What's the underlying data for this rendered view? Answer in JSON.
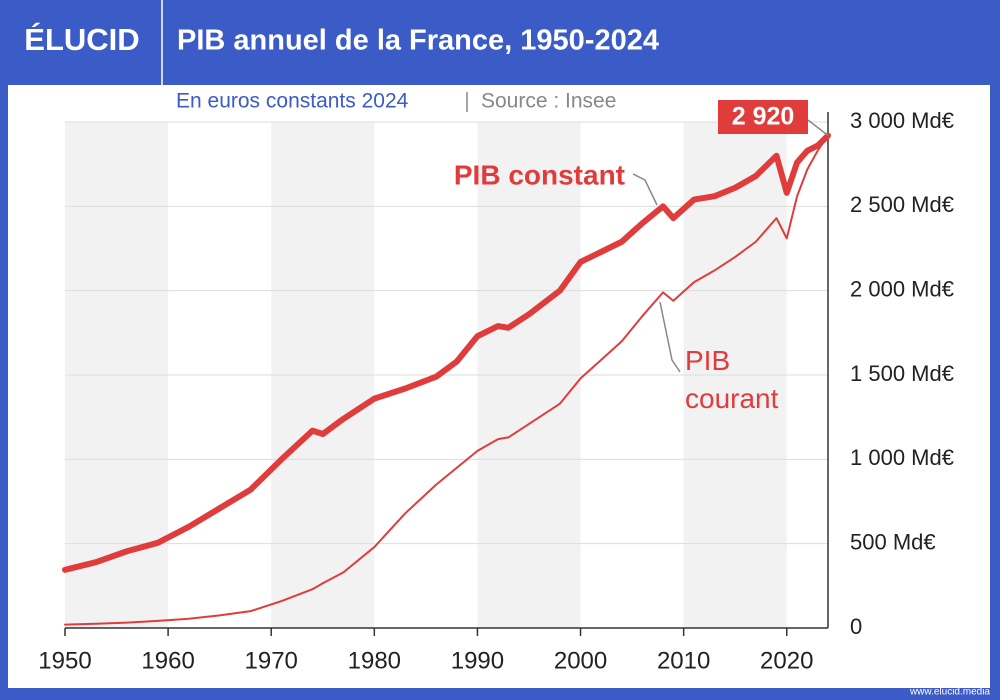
{
  "brand": "ÉLUCID",
  "footer": "www.elucid.media",
  "chart_data": {
    "type": "line",
    "title": "PIB annuel de la France, 1950-2024",
    "subtitle": "En euros constants 2024",
    "source": "Source : Insee",
    "x": [
      1950,
      1953,
      1956,
      1959,
      1962,
      1965,
      1968,
      1971,
      1974,
      1975,
      1977,
      1980,
      1983,
      1986,
      1988,
      1990,
      1992,
      1993,
      1995,
      1998,
      2000,
      2002,
      2004,
      2006,
      2008,
      2009,
      2011,
      2013,
      2015,
      2017,
      2019,
      2020,
      2021,
      2022,
      2023,
      2024
    ],
    "series": [
      {
        "name": "PIB constant",
        "color": "#e03c3c",
        "values": [
          345,
          390,
          455,
          505,
          600,
          710,
          820,
          1000,
          1170,
          1150,
          1240,
          1360,
          1420,
          1490,
          1580,
          1730,
          1790,
          1780,
          1860,
          2000,
          2170,
          2230,
          2290,
          2400,
          2500,
          2430,
          2540,
          2560,
          2610,
          2680,
          2800,
          2580,
          2760,
          2830,
          2860,
          2920
        ]
      },
      {
        "name": "PIB courant",
        "color": "#e03c3c",
        "values": [
          20,
          25,
          32,
          42,
          55,
          75,
          100,
          160,
          230,
          265,
          330,
          480,
          680,
          850,
          950,
          1050,
          1120,
          1130,
          1210,
          1330,
          1480,
          1590,
          1700,
          1850,
          1990,
          1940,
          2050,
          2120,
          2200,
          2290,
          2430,
          2310,
          2560,
          2720,
          2830,
          2920
        ]
      }
    ],
    "annotations": [
      {
        "text": "2 920",
        "x": 2024,
        "y": 2920
      }
    ],
    "xlim": [
      1950,
      2024
    ],
    "xticks": [
      1950,
      1960,
      1970,
      1980,
      1990,
      2000,
      2010,
      2020
    ],
    "ylim": [
      0,
      3000
    ],
    "yticks": [
      0,
      {
        "value": 500,
        "label": "500 Md€"
      },
      {
        "value": 1000,
        "label": "1 000 Md€"
      },
      {
        "value": 1500,
        "label": "1 500 Md€"
      },
      {
        "value": 2000,
        "label": "2 000 Md€"
      },
      {
        "value": 2500,
        "label": "2 500 Md€"
      },
      {
        "value": 3000,
        "label": "3 000 Md€"
      }
    ],
    "grid": true
  }
}
